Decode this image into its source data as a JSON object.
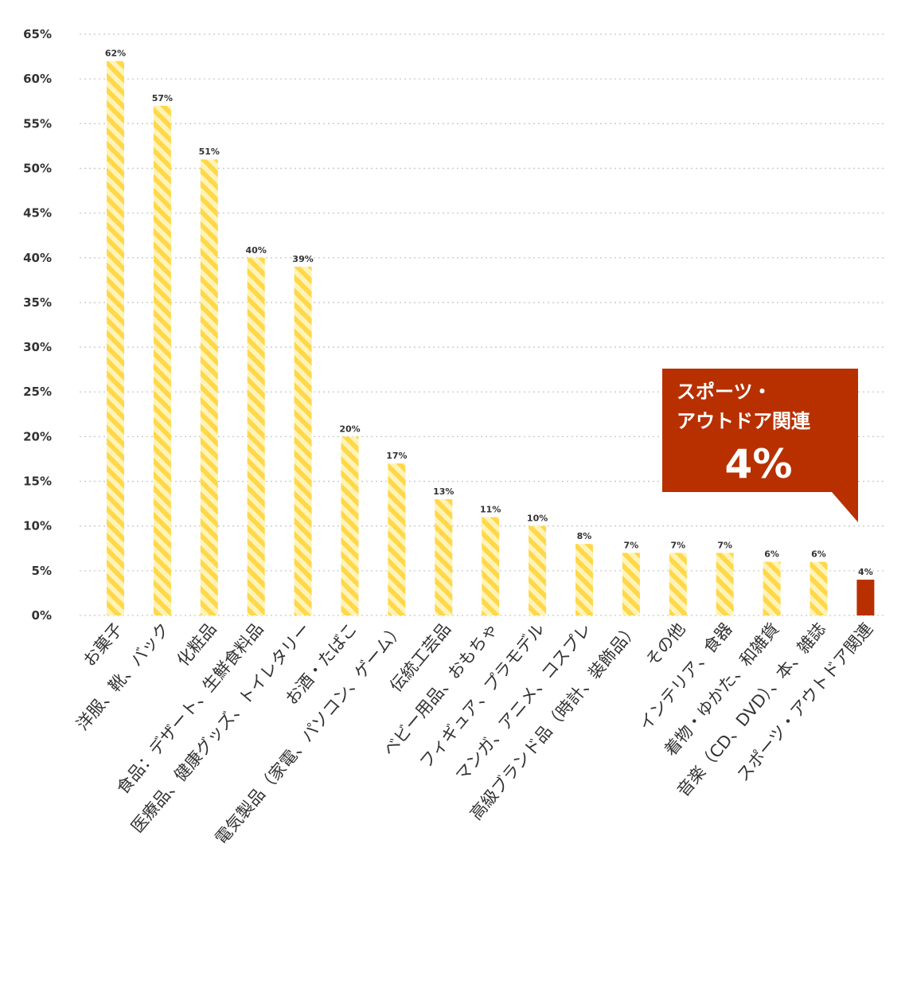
{
  "chart_data": {
    "type": "bar",
    "title": "",
    "xlabel": "",
    "ylabel": "",
    "ylim": [
      0,
      65
    ],
    "yticks": [
      0,
      5,
      10,
      15,
      20,
      25,
      30,
      35,
      40,
      45,
      50,
      55,
      60,
      65
    ],
    "ytick_labels": [
      "0%",
      "5%",
      "10%",
      "15%",
      "20%",
      "25%",
      "30%",
      "35%",
      "40%",
      "45%",
      "50%",
      "55%",
      "60%",
      "65%"
    ],
    "grid": "horizontal-dotted",
    "categories": [
      "お菓子",
      "洋服、靴、バック",
      "化粧品",
      "食品：デザート、生鮮食料品",
      "医療品、健康グッズ、トイレタリー",
      "お酒・たばこ",
      "電気製品（家電、パソコン、ゲーム）",
      "伝統工芸品",
      "ベビー用品、おもちゃ",
      "フィギュア、プラモデル",
      "マンガ、アニメ、コスプレ",
      "高級ブランド品（時計、装飾品）",
      "その他",
      "インテリア、食器",
      "着物・ゆかた、和雑貨",
      "音楽（CD、DVD）、本、雑誌",
      "スポーツ・アウトドア関連"
    ],
    "values": [
      62,
      57,
      51,
      40,
      39,
      20,
      17,
      13,
      11,
      10,
      8,
      7,
      7,
      7,
      6,
      6,
      4
    ],
    "value_labels": [
      "62%",
      "57%",
      "51%",
      "40%",
      "39%",
      "20%",
      "17%",
      "13%",
      "11%",
      "10%",
      "8%",
      "7%",
      "7%",
      "7%",
      "6%",
      "6%",
      "4%"
    ],
    "highlight_index": 16,
    "colors": {
      "bar_stripe_a": "#ffd84a",
      "bar_stripe_b": "#fff3b8",
      "highlight": "#b83000",
      "grid": "#c8c8c8"
    },
    "annotation": {
      "line1": "スポーツ・",
      "line2": "アウトドア関連",
      "value": "4%",
      "color": "#b83000"
    }
  }
}
